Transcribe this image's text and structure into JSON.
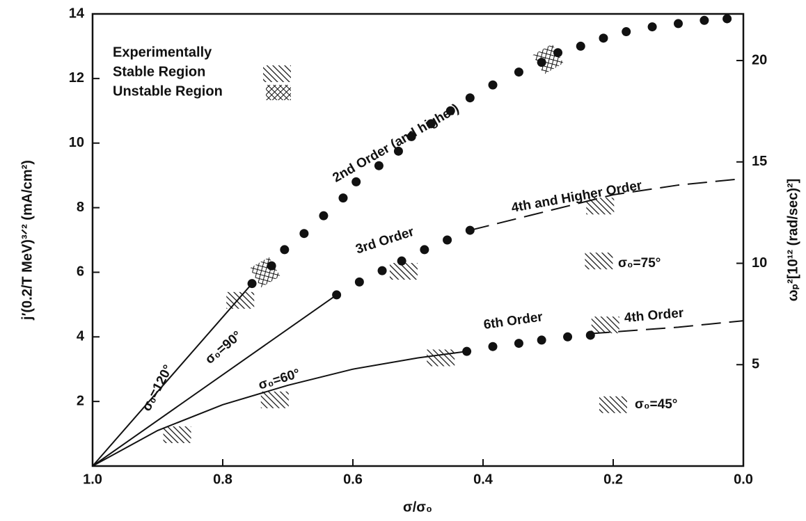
{
  "chart_data": {
    "type": "line",
    "xlabel": "σ/σ₀",
    "ylabel": "j′(0.2/T MeV)³ᐟ² (mA/cm²)",
    "y2label": "ωₚ²[10¹² (rad/sec)²]",
    "xlim": [
      1.0,
      0.0
    ],
    "xticks": [
      {
        "value": 1.0,
        "label": "1.0"
      },
      {
        "value": 0.8,
        "label": "0.8"
      },
      {
        "value": 0.6,
        "label": "0.6"
      },
      {
        "value": 0.4,
        "label": "0.4"
      },
      {
        "value": 0.2,
        "label": "0.2"
      },
      {
        "value": 0.0,
        "label": "0.0"
      }
    ],
    "ylim": [
      0,
      14
    ],
    "yticks": [
      2,
      4,
      6,
      8,
      10,
      12,
      14
    ],
    "y2lim": [
      0,
      22.3
    ],
    "y2ticks": [
      5,
      10,
      15,
      20
    ],
    "color": "#111111",
    "legend": [
      "Experimentally",
      "Stable Region",
      "Unstable Region"
    ],
    "annotations": [
      "2nd Order (and higher)",
      "3rd Order",
      "4th and Higher Order",
      "6th Order",
      "4th Order",
      "σ₀=120°",
      "σ₀=90°",
      "σ₀=60°",
      "σ₀=75°",
      "σ₀=45°"
    ],
    "series": [
      {
        "style": "dots",
        "x": [
          0.755,
          0.725,
          0.705,
          0.675,
          0.645,
          0.615,
          0.595,
          0.56,
          0.53,
          0.51,
          0.48,
          0.45,
          0.42,
          0.385,
          0.345,
          0.31,
          0.285,
          0.25,
          0.215,
          0.18,
          0.14,
          0.1,
          0.06,
          0.025
        ],
        "values": [
          5.65,
          6.2,
          6.7,
          7.2,
          7.75,
          8.3,
          8.8,
          9.3,
          9.75,
          10.2,
          10.6,
          11.0,
          11.4,
          11.8,
          12.2,
          12.5,
          12.8,
          13.0,
          13.25,
          13.45,
          13.6,
          13.7,
          13.8,
          13.85
        ]
      },
      {
        "style": "dots",
        "x": [
          0.625,
          0.59,
          0.555,
          0.525,
          0.49,
          0.455,
          0.42
        ],
        "values": [
          5.3,
          5.7,
          6.05,
          6.35,
          6.7,
          7.0,
          7.3
        ]
      },
      {
        "style": "dots",
        "x": [
          0.425,
          0.385,
          0.345,
          0.31,
          0.27,
          0.235
        ],
        "values": [
          3.55,
          3.7,
          3.8,
          3.9,
          4.0,
          4.05
        ]
      },
      {
        "style": "solid",
        "x": [
          1.0,
          0.755
        ],
        "values": [
          0,
          5.65
        ]
      },
      {
        "style": "solid",
        "x": [
          1.0,
          0.625
        ],
        "values": [
          0,
          5.3
        ]
      },
      {
        "style": "solid",
        "x": [
          1.0,
          0.9,
          0.8,
          0.7,
          0.6,
          0.5,
          0.425
        ],
        "values": [
          0,
          1.1,
          1.9,
          2.5,
          3.0,
          3.35,
          3.55
        ]
      },
      {
        "style": "dashed",
        "x": [
          0.42,
          0.3,
          0.2,
          0.1,
          0.0
        ],
        "values": [
          7.3,
          7.9,
          8.4,
          8.7,
          8.9
        ]
      },
      {
        "style": "dashed",
        "x": [
          0.235,
          0.1,
          0.0
        ],
        "values": [
          4.1,
          4.3,
          4.5
        ]
      },
      {
        "style": "hatch",
        "x": [
          0.87,
          0.773,
          0.72,
          0.522,
          0.465,
          0.22,
          0.222,
          0.212,
          0.2
        ],
        "values": [
          0.97,
          5.13,
          2.05,
          6.03,
          3.35,
          8.05,
          6.35,
          4.37,
          1.9
        ]
      },
      {
        "style": "crosshatch",
        "x": [
          0.735,
          0.3
        ],
        "values": [
          6.0,
          12.6
        ]
      }
    ]
  }
}
